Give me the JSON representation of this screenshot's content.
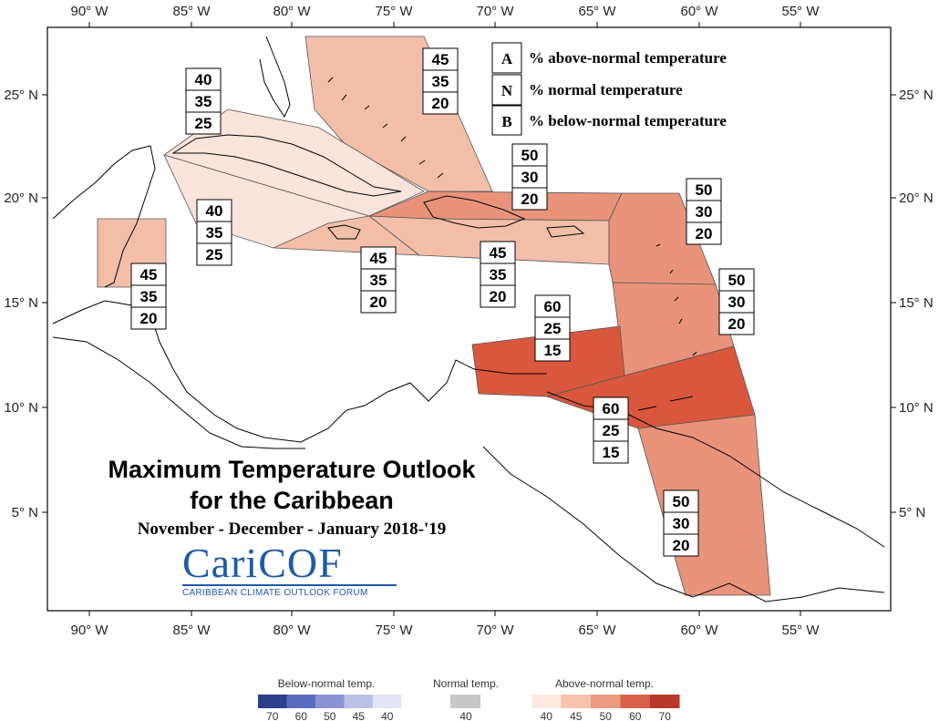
{
  "map": {
    "top_lon_labels": [
      "90° W",
      "85° W",
      "80° W",
      "75° W",
      "70° W",
      "65° W",
      "60° W",
      "55° W"
    ],
    "bottom_lon_labels": [
      "90° W",
      "85° W",
      "80° W",
      "75° W",
      "70° W",
      "65° W",
      "60° W",
      "55° W"
    ],
    "left_lat_labels": [
      "25° N",
      "20° N",
      "15° N",
      "10° N",
      "5° N"
    ],
    "right_lat_labels": [
      "25° N",
      "20° N",
      "15° N",
      "10° N",
      "5° N"
    ]
  },
  "key": {
    "a_letter": "A",
    "a_text": "% above-normal temperature",
    "n_letter": "N",
    "n_text": "% normal temperature",
    "b_letter": "B",
    "b_text": "% below-normal temperature"
  },
  "regions": [
    {
      "name": "bahamas",
      "above": "45",
      "normal": "35",
      "below": "20",
      "color": "#f3bfa9"
    },
    {
      "name": "cuba",
      "above": "40",
      "normal": "35",
      "below": "25",
      "color": "#fbe4da"
    },
    {
      "name": "jamaica-cayman",
      "above": "40",
      "normal": "35",
      "below": "25",
      "color": "#fbe4da"
    },
    {
      "name": "belize",
      "above": "45",
      "normal": "35",
      "below": "20",
      "color": "#f3bfa9"
    },
    {
      "name": "jamaica-south",
      "above": "45",
      "normal": "35",
      "below": "20",
      "color": "#f3bfa9"
    },
    {
      "name": "hispaniola",
      "above": "50",
      "normal": "30",
      "below": "20",
      "color": "#e8937a"
    },
    {
      "name": "puerto-rico",
      "above": "45",
      "normal": "35",
      "below": "20",
      "color": "#f3bfa9"
    },
    {
      "name": "leeward-islands",
      "above": "50",
      "normal": "30",
      "below": "20",
      "color": "#e8937a"
    },
    {
      "name": "windward-islands",
      "above": "50",
      "normal": "30",
      "below": "20",
      "color": "#e8937a"
    },
    {
      "name": "abc-islands",
      "above": "60",
      "normal": "25",
      "below": "15",
      "color": "#d9583d"
    },
    {
      "name": "trinidad",
      "above": "60",
      "normal": "25",
      "below": "15",
      "color": "#d9583d"
    },
    {
      "name": "guianas",
      "above": "50",
      "normal": "30",
      "below": "20",
      "color": "#e8937a"
    }
  ],
  "title": {
    "line1": "Maximum Temperature Outlook",
    "line2": "for the Caribbean",
    "subtitle": "November - December - January 2018-'19"
  },
  "logo": {
    "word": "CariCOF",
    "subtitle": "CARIBBEAN CLIMATE OUTLOOK FORUM"
  },
  "colorbar": {
    "below_title": "Below-normal temp.",
    "normal_title": "Normal temp.",
    "above_title": "Above-normal temp.",
    "below_ticks": [
      "70",
      "60",
      "50",
      "45",
      "40"
    ],
    "normal_ticks": [
      "40"
    ],
    "above_ticks": [
      "40",
      "45",
      "50",
      "60",
      "70"
    ],
    "below_colors": [
      "#2c3e8c",
      "#5b6cc0",
      "#8c93d2",
      "#bcc0e6",
      "#e3e4f5"
    ],
    "normal_color": "#c8c8c8",
    "above_colors": [
      "#fde9e0",
      "#f6c3ae",
      "#ec9a80",
      "#d8614a",
      "#b8392a"
    ]
  }
}
